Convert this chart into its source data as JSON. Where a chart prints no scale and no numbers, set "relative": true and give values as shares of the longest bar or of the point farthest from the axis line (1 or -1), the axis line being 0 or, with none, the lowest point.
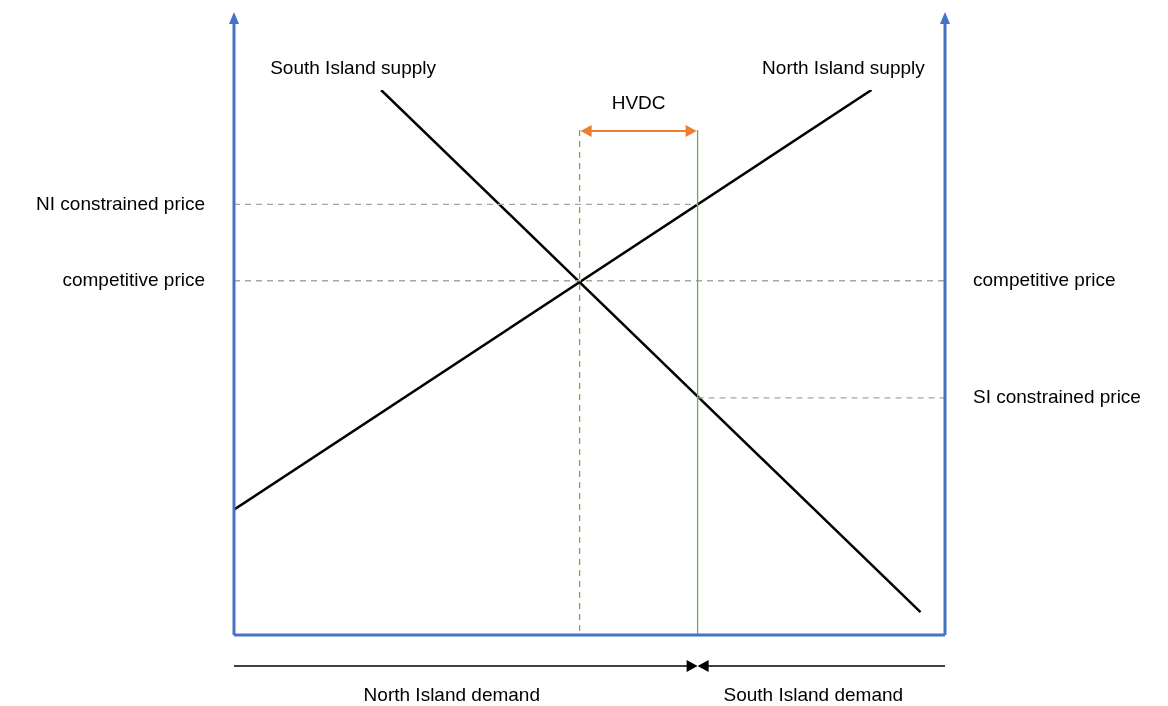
{
  "chart_data": {
    "type": "line",
    "relative": true,
    "grid": false,
    "legend": false,
    "marker": "none",
    "line_style": "solid",
    "categories": [
      null,
      null,
      null,
      null,
      null,
      null,
      null,
      null,
      null,
      null,
      null,
      null,
      null,
      null,
      null,
      null,
      null,
      null,
      null,
      null,
      null,
      null,
      null,
      null,
      null,
      null,
      null,
      null,
      null,
      null
    ],
    "series": [
      {
        "name": "South Island supply",
        "color": "#000000",
        "values": [
          null,
          null,
          null,
          null,
          null,
          null,
          1.0,
          null,
          null,
          null,
          null,
          null,
          null,
          null,
          null,
          null,
          null,
          null,
          null,
          null,
          null,
          null,
          null,
          null,
          null,
          null,
          null,
          null,
          0.042,
          null
        ]
      },
      {
        "name": "North Island supply",
        "color": "#000000",
        "values": [
          0.23,
          null,
          null,
          null,
          null,
          null,
          null,
          null,
          null,
          null,
          null,
          null,
          null,
          null,
          null,
          null,
          null,
          null,
          null,
          null,
          null,
          null,
          null,
          null,
          null,
          null,
          1.0,
          null,
          null,
          null
        ]
      }
    ],
    "ref_lines": [
      {
        "axis": "y",
        "value": 0.79,
        "label": "NI constrained price",
        "color": "#a6a6a6",
        "line_style": "dashed"
      },
      {
        "axis": "y",
        "value": 0.65,
        "label": "competitive price",
        "color": "#a6a6a6",
        "line_style": "dashed"
      },
      {
        "axis": "y",
        "value": 0.435,
        "label": "SI constrained price",
        "color": "#a6a6a6",
        "line_style": "dashed"
      }
    ],
    "annotations": [
      "HVDC",
      "North Island demand",
      "South Island demand"
    ]
  }
}
